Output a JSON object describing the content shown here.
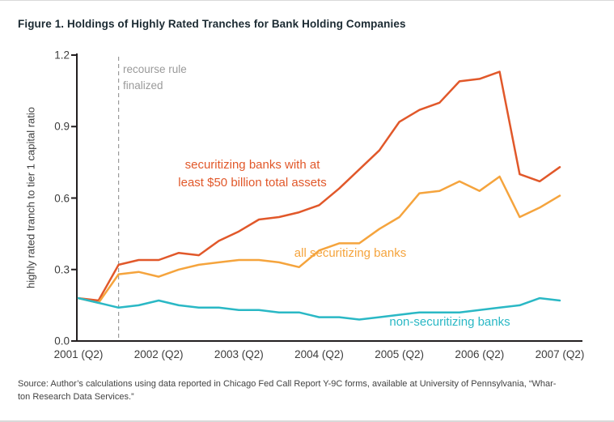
{
  "page": {
    "title": "Figure 1. Holdings of Highly Rated Tranches for Bank Holding Companies",
    "source_lines": [
      "Source: Author’s calculations using data reported in Chicago Fed Call Report Y-9C forms, available at University of Pennsylvania, “Whar-",
      "ton Research Data Services.”"
    ]
  },
  "chart_data": {
    "type": "line",
    "title": "Figure 1. Holdings of Highly Rated Tranches for Bank Holding Companies",
    "xlabel": "",
    "ylabel": "highly rated tranch to tier 1 capital ratio",
    "ylim": [
      0,
      1.2
    ],
    "yticks": [
      0,
      0.3,
      0.6,
      0.9,
      1.2
    ],
    "ytick_labels": [
      "0.0",
      "0.3",
      "0.6",
      "0.9",
      "1.2"
    ],
    "x_tick_labels": [
      "2001 (Q2)",
      "2002 (Q2)",
      "2003 (Q2)",
      "2004 (Q2)",
      "2005 (Q2)",
      "2006 (Q2)",
      "2007 (Q2)"
    ],
    "x_tick_indices": [
      0,
      4,
      8,
      12,
      16,
      20,
      24
    ],
    "x_unit": "quarterly from 2001 Q2 to 2007 Q2",
    "grid": false,
    "legend_position": "inline-labels",
    "axis_color": "#231f20",
    "series": [
      {
        "name": "securitizing banks with at least $50 billion total assets",
        "color": "#e1582a",
        "values": [
          0.18,
          0.17,
          0.32,
          0.34,
          0.34,
          0.37,
          0.36,
          0.42,
          0.46,
          0.51,
          0.52,
          0.54,
          0.57,
          0.64,
          0.72,
          0.8,
          0.92,
          0.97,
          1.0,
          1.09,
          1.1,
          1.13,
          0.7,
          0.67,
          0.73
        ]
      },
      {
        "name": "all securitizing banks",
        "color": "#f5a43d",
        "values": [
          0.18,
          0.16,
          0.28,
          0.29,
          0.27,
          0.3,
          0.32,
          0.33,
          0.34,
          0.34,
          0.33,
          0.31,
          0.38,
          0.41,
          0.41,
          0.47,
          0.52,
          0.62,
          0.63,
          0.67,
          0.63,
          0.69,
          0.52,
          0.56,
          0.61
        ]
      },
      {
        "name": "non-securitizing banks",
        "color": "#2ab8c5",
        "values": [
          0.18,
          0.16,
          0.14,
          0.15,
          0.17,
          0.15,
          0.14,
          0.14,
          0.13,
          0.13,
          0.12,
          0.12,
          0.1,
          0.1,
          0.09,
          0.1,
          0.11,
          0.12,
          0.12,
          0.12,
          0.13,
          0.14,
          0.15,
          0.18,
          0.17
        ]
      }
    ],
    "annotations": {
      "recourse_rule": {
        "label_lines": [
          "recourse rule",
          "finalized"
        ],
        "x_index": 2,
        "color": "#9a9a9a"
      },
      "series_labels": [
        {
          "text_lines": [
            "securitizing banks with at",
            "least $50 billion total assets"
          ],
          "color": "#e1582a"
        },
        {
          "text_lines": [
            "all securitizing banks"
          ],
          "color": "#f5a43d"
        },
        {
          "text_lines": [
            "non-securitizing banks"
          ],
          "color": "#2ab8c5"
        }
      ]
    }
  }
}
